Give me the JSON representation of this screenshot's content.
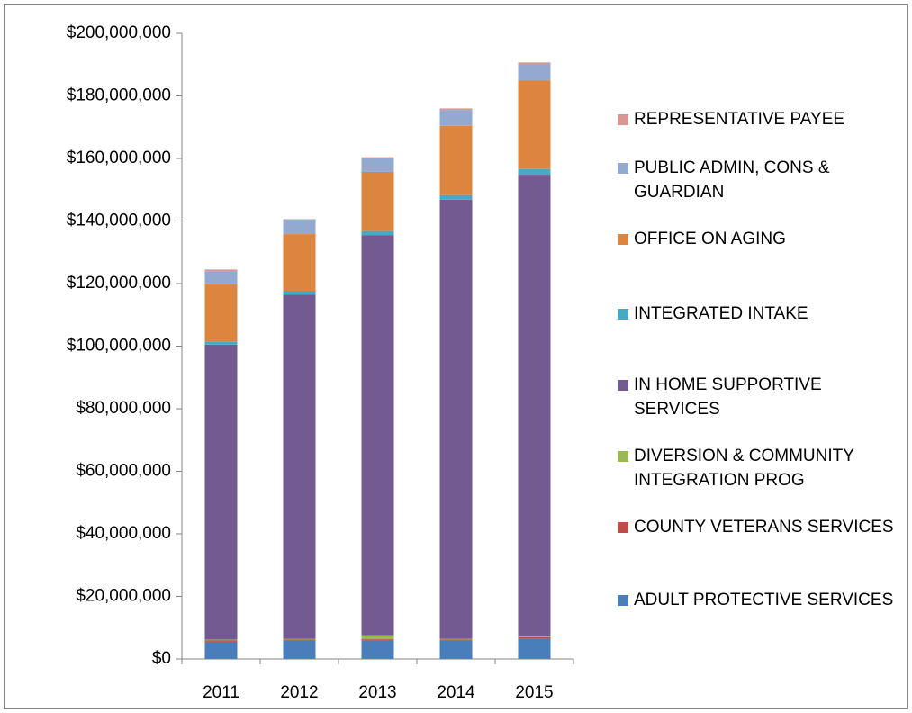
{
  "chart_data": {
    "type": "stacked_bar",
    "categories": [
      "2011",
      "2012",
      "2013",
      "2014",
      "2015"
    ],
    "series": [
      {
        "name": "ADULT PROTECTIVE SERVICES",
        "color": "#4a7ebb",
        "values": [
          5500000,
          5800000,
          5800000,
          5800000,
          6500000
        ]
      },
      {
        "name": "COUNTY VETERANS SERVICES",
        "color": "#be4b48",
        "values": [
          500000,
          400000,
          500000,
          400000,
          500000
        ]
      },
      {
        "name": "DIVERSION & COMMUNITY INTEGRATION PROG",
        "color": "#98b954",
        "values": [
          200000,
          200000,
          1300000,
          200000,
          200000
        ]
      },
      {
        "name": "IN HOME SUPPORTIVE SERVICES",
        "color": "#735a91",
        "values": [
          94300000,
          110100000,
          127900000,
          140400000,
          147600000
        ]
      },
      {
        "name": "INTEGRATED INTAKE",
        "color": "#46aac5",
        "values": [
          1000000,
          1200000,
          1300000,
          1500000,
          1800000
        ]
      },
      {
        "name": "OFFICE ON AGING",
        "color": "#dc853e",
        "values": [
          18200000,
          18100000,
          18900000,
          22100000,
          28400000
        ]
      },
      {
        "name": "PUBLIC ADMIN, CONS & GUARDIAN",
        "color": "#93a9cf",
        "values": [
          4300000,
          4600000,
          4300000,
          5100000,
          5200000
        ]
      },
      {
        "name": "REPRESENTATIVE PAYEE",
        "color": "#d99694",
        "values": [
          500000,
          200000,
          400000,
          500000,
          500000
        ]
      }
    ],
    "ylim": [
      0,
      200000000
    ],
    "yticks": [
      {
        "value": 0,
        "label": "$0"
      },
      {
        "value": 20000000,
        "label": "$20,000,000"
      },
      {
        "value": 40000000,
        "label": "$40,000,000"
      },
      {
        "value": 60000000,
        "label": "$60,000,000"
      },
      {
        "value": 80000000,
        "label": "$80,000,000"
      },
      {
        "value": 100000000,
        "label": "$100,000,000"
      },
      {
        "value": 120000000,
        "label": "$120,000,000"
      },
      {
        "value": 140000000,
        "label": "$140,000,000"
      },
      {
        "value": 160000000,
        "label": "$160,000,000"
      },
      {
        "value": 180000000,
        "label": "$180,000,000"
      },
      {
        "value": 200000000,
        "label": "$200,000,000"
      }
    ],
    "grid": false
  }
}
